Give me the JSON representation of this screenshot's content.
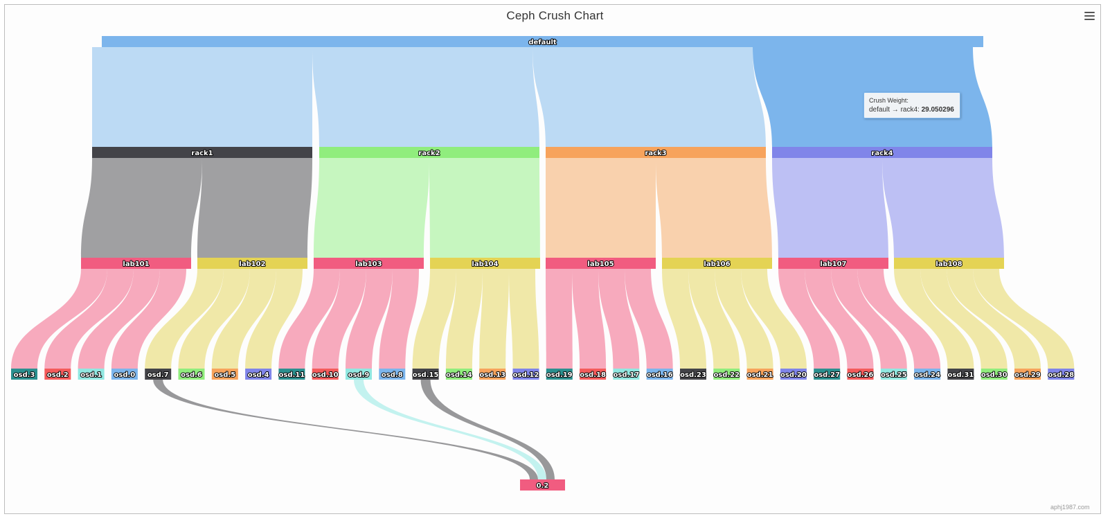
{
  "title": "Ceph Crush Chart",
  "credit": "aphj1987.com",
  "menu_icon": "hamburger-menu-icon",
  "tooltip": {
    "header": "Crush Weight:",
    "path": "default → rack4:",
    "value": "29.050296"
  },
  "colors": {
    "default": "#7cb5ec",
    "rack1": "#434348",
    "rack2": "#90ed7d",
    "rack3": "#f7a35c",
    "rack4": "#8085e9",
    "lab_pink": "#f15c80",
    "lab_yellow": "#e4d354",
    "osd_teal": "#2b908f",
    "osd_red": "#f45b5b",
    "osd_cyan": "#91e8e1",
    "flow_default": "#bcdaf4",
    "flow_highlight": "#7cb5ec",
    "flow_rack1": "#a0a0a2",
    "flow_rack2": "#c6f6bf",
    "flow_rack3": "#f9d1ad",
    "flow_rack4": "#bdc0f4",
    "flow_lab_pink": "#f7aabd",
    "flow_lab_yellow": "#f0e8a8"
  },
  "chart_data": {
    "type": "sankey",
    "title": "Ceph Crush Chart",
    "series_name": "Crush Weight",
    "nodes": [
      {
        "id": "default",
        "color": "#7cb5ec"
      },
      {
        "id": "rack1",
        "color": "#434348"
      },
      {
        "id": "rack2",
        "color": "#90ed7d"
      },
      {
        "id": "rack3",
        "color": "#f7a35c"
      },
      {
        "id": "rack4",
        "color": "#8085e9"
      },
      {
        "id": "lab101",
        "color": "#f15c80"
      },
      {
        "id": "lab102",
        "color": "#e4d354"
      },
      {
        "id": "lab103",
        "color": "#f15c80"
      },
      {
        "id": "lab104",
        "color": "#e4d354"
      },
      {
        "id": "lab105",
        "color": "#f15c80"
      },
      {
        "id": "lab106",
        "color": "#e4d354"
      },
      {
        "id": "lab107",
        "color": "#f15c80"
      },
      {
        "id": "lab108",
        "color": "#e4d354"
      },
      {
        "id": "osd.3",
        "color": "#2b908f"
      },
      {
        "id": "osd.2",
        "color": "#f45b5b"
      },
      {
        "id": "osd.1",
        "color": "#91e8e1"
      },
      {
        "id": "osd.0",
        "color": "#7cb5ec"
      },
      {
        "id": "osd.7",
        "color": "#434348"
      },
      {
        "id": "osd.6",
        "color": "#90ed7d"
      },
      {
        "id": "osd.5",
        "color": "#f7a35c"
      },
      {
        "id": "osd.4",
        "color": "#8085e9"
      },
      {
        "id": "osd.11",
        "color": "#2b908f"
      },
      {
        "id": "osd.10",
        "color": "#f45b5b"
      },
      {
        "id": "osd.9",
        "color": "#91e8e1"
      },
      {
        "id": "osd.8",
        "color": "#7cb5ec"
      },
      {
        "id": "osd.15",
        "color": "#434348"
      },
      {
        "id": "osd.14",
        "color": "#90ed7d"
      },
      {
        "id": "osd.13",
        "color": "#f7a35c"
      },
      {
        "id": "osd.12",
        "color": "#8085e9"
      },
      {
        "id": "osd.19",
        "color": "#2b908f"
      },
      {
        "id": "osd.18",
        "color": "#f45b5b"
      },
      {
        "id": "osd.17",
        "color": "#91e8e1"
      },
      {
        "id": "osd.16",
        "color": "#7cb5ec"
      },
      {
        "id": "osd.23",
        "color": "#434348"
      },
      {
        "id": "osd.22",
        "color": "#90ed7d"
      },
      {
        "id": "osd.21",
        "color": "#f7a35c"
      },
      {
        "id": "osd.20",
        "color": "#8085e9"
      },
      {
        "id": "osd.27",
        "color": "#2b908f"
      },
      {
        "id": "osd.26",
        "color": "#f45b5b"
      },
      {
        "id": "osd.25",
        "color": "#91e8e1"
      },
      {
        "id": "osd.24",
        "color": "#7cb5ec"
      },
      {
        "id": "osd.31",
        "color": "#434348"
      },
      {
        "id": "osd.30",
        "color": "#90ed7d"
      },
      {
        "id": "osd.29",
        "color": "#f7a35c"
      },
      {
        "id": "osd.28",
        "color": "#8085e9"
      },
      {
        "id": "0.2",
        "color": "#f15c80"
      }
    ],
    "levels": [
      [
        "default"
      ],
      [
        "rack1",
        "rack2",
        "rack3",
        "rack4"
      ],
      [
        "lab101",
        "lab102",
        "lab103",
        "lab104",
        "lab105",
        "lab106",
        "lab107",
        "lab108"
      ],
      [
        "osd.3",
        "osd.2",
        "osd.1",
        "osd.0",
        "osd.7",
        "osd.6",
        "osd.5",
        "osd.4",
        "osd.11",
        "osd.10",
        "osd.9",
        "osd.8",
        "osd.15",
        "osd.14",
        "osd.13",
        "osd.12",
        "osd.19",
        "osd.18",
        "osd.17",
        "osd.16",
        "osd.23",
        "osd.22",
        "osd.21",
        "osd.20",
        "osd.27",
        "osd.26",
        "osd.25",
        "osd.24",
        "osd.31",
        "osd.30",
        "osd.29",
        "osd.28"
      ],
      [
        "0.2"
      ]
    ],
    "links": [
      {
        "from": "default",
        "to": "rack1",
        "weight": 29.050296
      },
      {
        "from": "default",
        "to": "rack2",
        "weight": 29.050296
      },
      {
        "from": "default",
        "to": "rack3",
        "weight": 29.050296
      },
      {
        "from": "default",
        "to": "rack4",
        "weight": 29.050296
      },
      {
        "from": "rack1",
        "to": "lab101",
        "weight": 14.525148
      },
      {
        "from": "rack1",
        "to": "lab102",
        "weight": 14.525148
      },
      {
        "from": "rack2",
        "to": "lab103",
        "weight": 14.525148
      },
      {
        "from": "rack2",
        "to": "lab104",
        "weight": 14.525148
      },
      {
        "from": "rack3",
        "to": "lab105",
        "weight": 14.525148
      },
      {
        "from": "rack3",
        "to": "lab106",
        "weight": 14.525148
      },
      {
        "from": "rack4",
        "to": "lab107",
        "weight": 14.525148
      },
      {
        "from": "rack4",
        "to": "lab108",
        "weight": 14.525148
      },
      {
        "from": "lab101",
        "to": "osd.3",
        "weight": 3.631287
      },
      {
        "from": "lab101",
        "to": "osd.2",
        "weight": 3.631287
      },
      {
        "from": "lab101",
        "to": "osd.1",
        "weight": 3.631287
      },
      {
        "from": "lab101",
        "to": "osd.0",
        "weight": 3.631287
      },
      {
        "from": "lab102",
        "to": "osd.7",
        "weight": 3.631287
      },
      {
        "from": "lab102",
        "to": "osd.6",
        "weight": 3.631287
      },
      {
        "from": "lab102",
        "to": "osd.5",
        "weight": 3.631287
      },
      {
        "from": "lab102",
        "to": "osd.4",
        "weight": 3.631287
      },
      {
        "from": "lab103",
        "to": "osd.11",
        "weight": 3.631287
      },
      {
        "from": "lab103",
        "to": "osd.10",
        "weight": 3.631287
      },
      {
        "from": "lab103",
        "to": "osd.9",
        "weight": 3.631287
      },
      {
        "from": "lab103",
        "to": "osd.8",
        "weight": 3.631287
      },
      {
        "from": "lab104",
        "to": "osd.15",
        "weight": 3.631287
      },
      {
        "from": "lab104",
        "to": "osd.14",
        "weight": 3.631287
      },
      {
        "from": "lab104",
        "to": "osd.13",
        "weight": 3.631287
      },
      {
        "from": "lab104",
        "to": "osd.12",
        "weight": 3.631287
      },
      {
        "from": "lab105",
        "to": "osd.19",
        "weight": 3.631287
      },
      {
        "from": "lab105",
        "to": "osd.18",
        "weight": 3.631287
      },
      {
        "from": "lab105",
        "to": "osd.17",
        "weight": 3.631287
      },
      {
        "from": "lab105",
        "to": "osd.16",
        "weight": 3.631287
      },
      {
        "from": "lab106",
        "to": "osd.23",
        "weight": 3.631287
      },
      {
        "from": "lab106",
        "to": "osd.22",
        "weight": 3.631287
      },
      {
        "from": "lab106",
        "to": "osd.21",
        "weight": 3.631287
      },
      {
        "from": "lab106",
        "to": "osd.20",
        "weight": 3.631287
      },
      {
        "from": "lab107",
        "to": "osd.27",
        "weight": 3.631287
      },
      {
        "from": "lab107",
        "to": "osd.26",
        "weight": 3.631287
      },
      {
        "from": "lab107",
        "to": "osd.25",
        "weight": 3.631287
      },
      {
        "from": "lab107",
        "to": "osd.24",
        "weight": 3.631287
      },
      {
        "from": "lab108",
        "to": "osd.31",
        "weight": 3.631287
      },
      {
        "from": "lab108",
        "to": "osd.30",
        "weight": 3.631287
      },
      {
        "from": "lab108",
        "to": "osd.29",
        "weight": 3.631287
      },
      {
        "from": "lab108",
        "to": "osd.28",
        "weight": 3.631287
      },
      {
        "from": "osd.7",
        "to": "0.2",
        "weight": 0.5
      },
      {
        "from": "osd.9",
        "to": "0.2",
        "weight": 0.5
      },
      {
        "from": "osd.15",
        "to": "0.2",
        "weight": 0.5
      }
    ],
    "highlighted_link": {
      "from": "default",
      "to": "rack4"
    },
    "orientation": "vertical",
    "legend": false
  }
}
